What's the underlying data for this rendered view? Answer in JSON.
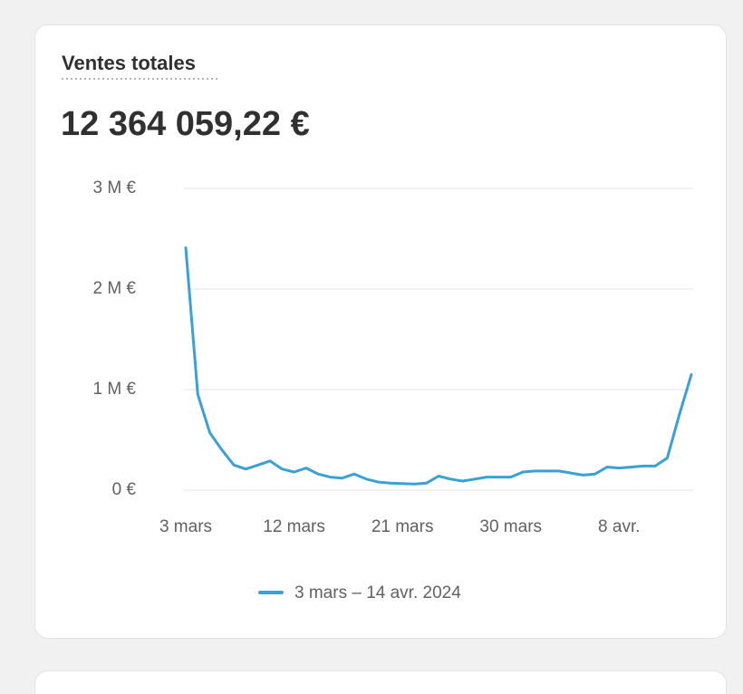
{
  "chart_data": {
    "type": "line",
    "title": "Ventes totales",
    "total": "12 364 059,22 €",
    "categories": [
      "3 mars",
      null,
      null,
      null,
      null,
      null,
      null,
      null,
      null,
      "12 mars",
      null,
      null,
      null,
      null,
      null,
      null,
      null,
      null,
      "21 mars",
      null,
      null,
      null,
      null,
      null,
      null,
      null,
      null,
      "30 mars",
      null,
      null,
      null,
      null,
      null,
      null,
      null,
      null,
      "8 avr.",
      null,
      null,
      null,
      null,
      null,
      null
    ],
    "series": [
      {
        "name": "3 mars – 14 avr. 2024",
        "color": "#3aa1d8",
        "values": [
          2410000,
          950000,
          570000,
          400000,
          250000,
          210000,
          250000,
          290000,
          210000,
          180000,
          220000,
          160000,
          130000,
          120000,
          160000,
          110000,
          80000,
          70000,
          65000,
          60000,
          70000,
          140000,
          110000,
          90000,
          110000,
          130000,
          130000,
          130000,
          180000,
          190000,
          190000,
          190000,
          170000,
          150000,
          160000,
          230000,
          220000,
          230000,
          240000,
          240000,
          320000,
          750000,
          1150000
        ]
      }
    ],
    "ylim": [
      0,
      3000000
    ],
    "yticks": [
      {
        "value": 0,
        "label": "0 €"
      },
      {
        "value": 1000000,
        "label": "1 M €"
      },
      {
        "value": 2000000,
        "label": "2 M €"
      },
      {
        "value": 3000000,
        "label": "3 M €"
      }
    ],
    "grid": true
  }
}
